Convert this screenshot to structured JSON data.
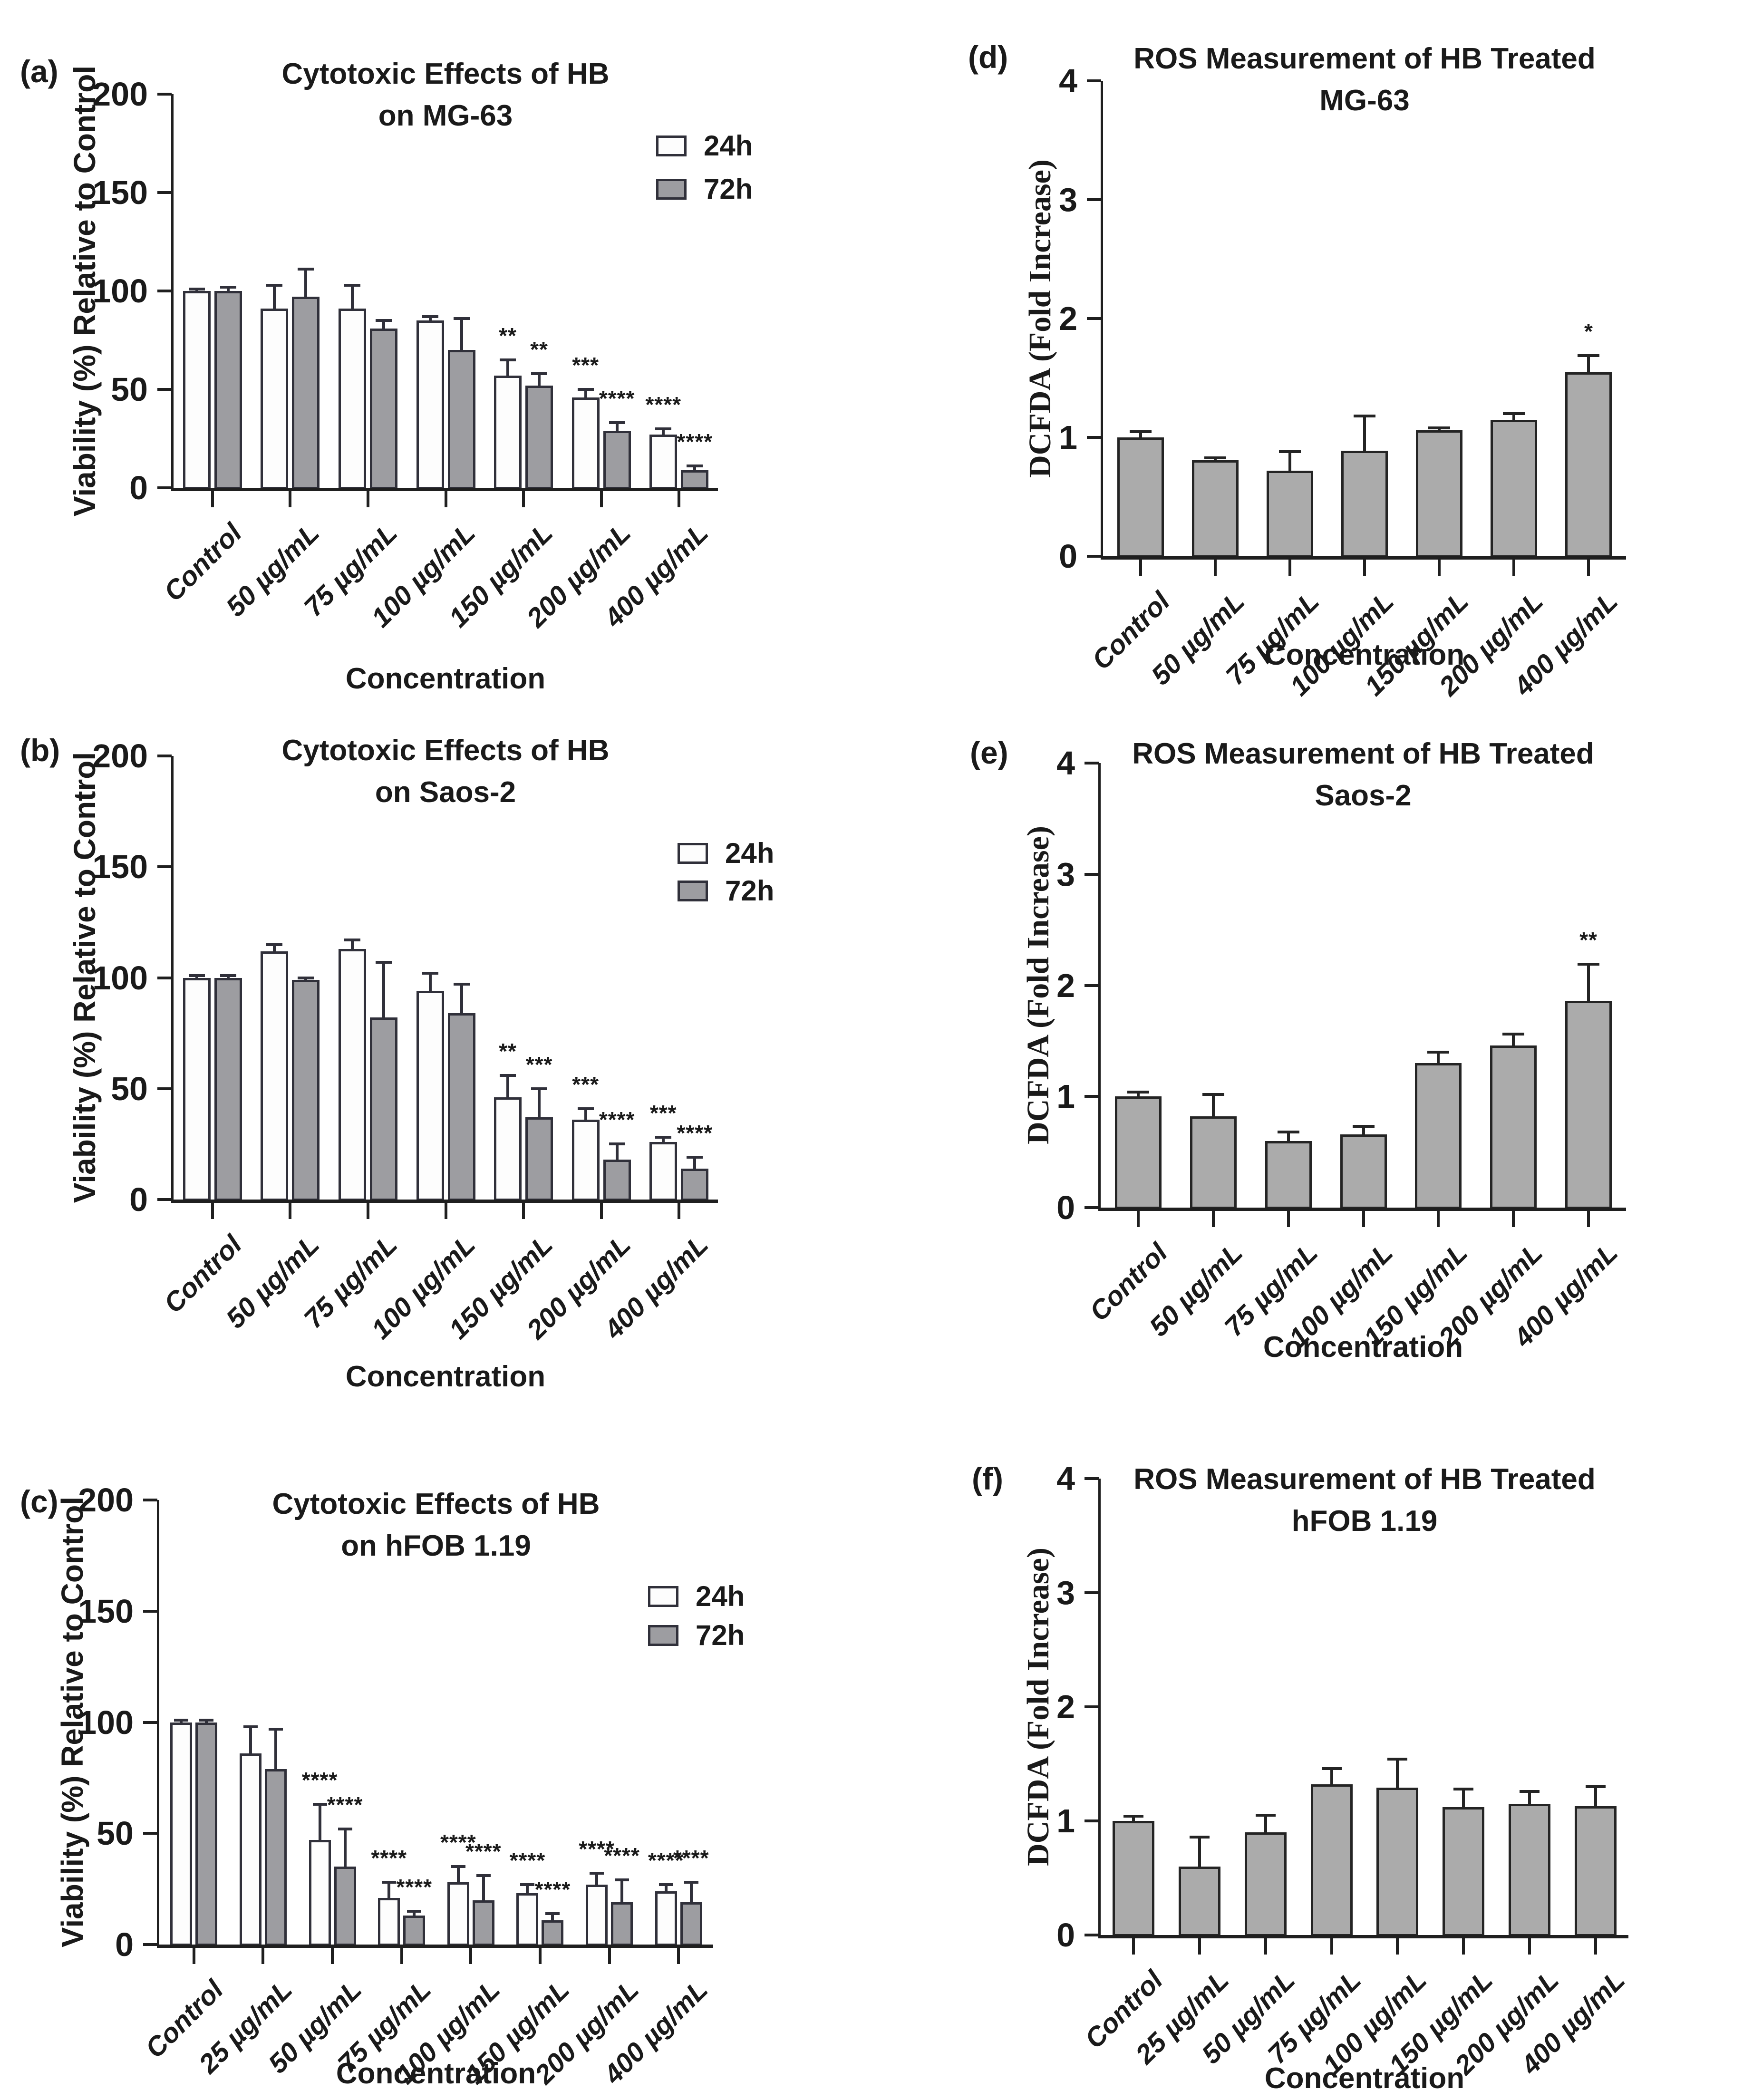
{
  "figure": {
    "background": "#ffffff",
    "text_color": "#1a1a1a",
    "axis_color": "#1f1f1f"
  },
  "chart_data": [
    {
      "panel": "a",
      "letter": "(a)",
      "type": "bar",
      "title": "Cytotoxic Effects of HB on MG-63",
      "title_lines": [
        "Cytotoxic Effects of HB",
        "on MG-63"
      ],
      "xlabel": "Concentration",
      "ylabel": "Viability (%) Relative to Control",
      "ylim": [
        0,
        200
      ],
      "yticks": [
        0,
        50,
        100,
        150,
        200
      ],
      "grid": false,
      "legend": {
        "position": "top-right",
        "items": [
          "24h",
          "72h"
        ]
      },
      "outline": "#30303a",
      "categories": [
        "Control",
        "50 µg/mL",
        "75 µg/mL",
        "100 µg/mL",
        "150 µg/mL",
        "200 µg/mL",
        "400 µg/mL"
      ],
      "series": [
        {
          "name": "24h",
          "fill": "#fdfdfd",
          "values": [
            100,
            91,
            91,
            85,
            57,
            46,
            27
          ],
          "errors": [
            1,
            12,
            12,
            2,
            8,
            4,
            3
          ],
          "significance": [
            "",
            "",
            "",
            "",
            "**",
            "***",
            "****"
          ]
        },
        {
          "name": "72h",
          "fill": "#9d9da1",
          "values": [
            100,
            97,
            81,
            70,
            52,
            29,
            9
          ],
          "errors": [
            2,
            14,
            4,
            16,
            6,
            4,
            2
          ],
          "significance": [
            "",
            "",
            "",
            "",
            "**",
            "****",
            "****"
          ]
        }
      ]
    },
    {
      "panel": "b",
      "letter": "(b)",
      "type": "bar",
      "title": "Cytotoxic Effects of HB on Saos-2",
      "title_lines": [
        "Cytotoxic Effects of HB",
        "on Saos-2"
      ],
      "xlabel": "Concentration",
      "ylabel": "Viability (%) Relative to Control",
      "ylim": [
        0,
        200
      ],
      "yticks": [
        0,
        50,
        100,
        150,
        200
      ],
      "grid": false,
      "legend": {
        "position": "top-right",
        "items": [
          "24h",
          "72h"
        ]
      },
      "outline": "#30303a",
      "categories": [
        "Control",
        "50 µg/mL",
        "75 µg/mL",
        "100 µg/mL",
        "150 µg/mL",
        "200 µg/mL",
        "400 µg/mL"
      ],
      "series": [
        {
          "name": "24h",
          "fill": "#fdfdfd",
          "values": [
            100,
            112,
            113,
            94,
            46,
            36,
            26
          ],
          "errors": [
            1,
            3,
            4,
            8,
            10,
            5,
            2
          ],
          "significance": [
            "",
            "",
            "",
            "",
            "**",
            "***",
            "***"
          ]
        },
        {
          "name": "72h",
          "fill": "#9d9da1",
          "values": [
            100,
            99,
            82,
            84,
            37,
            18,
            14
          ],
          "errors": [
            1,
            1,
            25,
            13,
            13,
            7,
            5
          ],
          "significance": [
            "",
            "",
            "",
            "",
            "***",
            "****",
            "****"
          ]
        }
      ]
    },
    {
      "panel": "c",
      "letter": "(c)",
      "type": "bar",
      "title": "Cytotoxic Effects of HB on hFOB 1.19",
      "title_lines": [
        "Cytotoxic Effects of HB",
        "on hFOB 1.19"
      ],
      "xlabel": "Concentration",
      "ylabel": "Viability (%) Relative to Control",
      "ylim": [
        0,
        200
      ],
      "yticks": [
        0,
        50,
        100,
        150,
        200
      ],
      "grid": false,
      "legend": {
        "position": "top-right",
        "items": [
          "24h",
          "72h"
        ]
      },
      "outline": "#30303a",
      "categories": [
        "Control",
        "25 µg/mL",
        "50 µg/mL",
        "75 µg/mL",
        "100 µg/mL",
        "150 µg/mL",
        "200 µg/mL",
        "400 µg/mL"
      ],
      "series": [
        {
          "name": "24h",
          "fill": "#fdfdfd",
          "values": [
            100,
            86,
            47,
            21,
            28,
            23,
            27,
            24
          ],
          "errors": [
            1,
            12,
            16,
            7,
            7,
            4,
            5,
            3
          ],
          "significance": [
            "",
            "",
            "****",
            "****",
            "****",
            "****",
            "****",
            "****"
          ]
        },
        {
          "name": "72h",
          "fill": "#9d9da1",
          "values": [
            100,
            79,
            35,
            13,
            20,
            11,
            19,
            19
          ],
          "errors": [
            1,
            18,
            17,
            2,
            11,
            3,
            10,
            9
          ],
          "significance": [
            "",
            "",
            "****",
            "****",
            "****",
            "****",
            "****",
            "****"
          ]
        }
      ]
    },
    {
      "panel": "d",
      "letter": "(d)",
      "type": "bar",
      "title": "ROS Measurement of HB Treated MG-63",
      "title_lines": [
        "ROS Measurement of HB Treated",
        "MG-63"
      ],
      "xlabel": "Concentration",
      "ylabel": "DCFDA (Fold Increase)",
      "ylim": [
        0,
        4
      ],
      "yticks": [
        0,
        1,
        2,
        3,
        4
      ],
      "grid": false,
      "outline": "#242424",
      "categories": [
        "Control",
        "50 µg/mL",
        "75 µg/mL",
        "100 µg/mL",
        "150 µg/mL",
        "200 µg/mL",
        "400 µg/mL"
      ],
      "series": [
        {
          "name": "DCFDA",
          "fill": "#ababab",
          "values": [
            1.0,
            0.81,
            0.72,
            0.89,
            1.06,
            1.15,
            1.55
          ],
          "errors": [
            0.05,
            0.02,
            0.16,
            0.29,
            0.02,
            0.05,
            0.14
          ],
          "significance": [
            "",
            "",
            "",
            "",
            "",
            "",
            "*"
          ]
        }
      ]
    },
    {
      "panel": "e",
      "letter": "(e)",
      "type": "bar",
      "title": "ROS Measurement of HB Treated Saos-2",
      "title_lines": [
        "ROS Measurement of HB Treated",
        "Saos-2"
      ],
      "xlabel": "Concentration",
      "ylabel": "DCFDA (Fold Increase)",
      "ylim": [
        0,
        4
      ],
      "yticks": [
        0,
        1,
        2,
        3,
        4
      ],
      "grid": false,
      "outline": "#242424",
      "categories": [
        "Control",
        "50 µg/mL",
        "75 µg/mL",
        "100 µg/mL",
        "150 µg/mL",
        "200 µg/mL",
        "400 µg/mL"
      ],
      "series": [
        {
          "name": "DCFDA",
          "fill": "#ababab",
          "values": [
            1.0,
            0.82,
            0.6,
            0.66,
            1.3,
            1.46,
            1.86
          ],
          "errors": [
            0.04,
            0.2,
            0.08,
            0.07,
            0.1,
            0.1,
            0.33
          ],
          "significance": [
            "",
            "",
            "",
            "",
            "",
            "",
            "**"
          ]
        }
      ]
    },
    {
      "panel": "f",
      "letter": "(f)",
      "type": "bar",
      "title": "ROS Measurement of HB Treated hFOB 1.19",
      "title_lines": [
        "ROS Measurement of HB Treated",
        "hFOB 1.19"
      ],
      "xlabel": "Concentration",
      "ylabel": "DCFDA (Fold Increase)",
      "ylim": [
        0,
        4
      ],
      "yticks": [
        0,
        1,
        2,
        3,
        4
      ],
      "grid": false,
      "outline": "#242424",
      "categories": [
        "Control",
        "25 µg/mL",
        "50 µg/mL",
        "75 µg/mL",
        "100 µg/mL",
        "150 µg/mL",
        "200 µg/mL",
        "400 µg/mL"
      ],
      "series": [
        {
          "name": "DCFDA",
          "fill": "#ababab",
          "values": [
            1.0,
            0.6,
            0.9,
            1.32,
            1.29,
            1.12,
            1.15,
            1.13
          ],
          "errors": [
            0.04,
            0.26,
            0.15,
            0.14,
            0.25,
            0.16,
            0.11,
            0.17
          ],
          "significance": [
            "",
            "",
            "",
            "",
            "",
            "",
            "",
            ""
          ]
        }
      ]
    }
  ]
}
